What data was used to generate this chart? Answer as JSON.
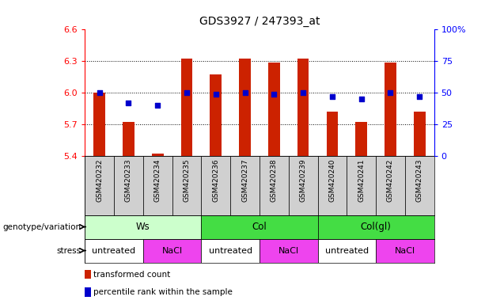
{
  "title": "GDS3927 / 247393_at",
  "samples": [
    "GSM420232",
    "GSM420233",
    "GSM420234",
    "GSM420235",
    "GSM420236",
    "GSM420237",
    "GSM420238",
    "GSM420239",
    "GSM420240",
    "GSM420241",
    "GSM420242",
    "GSM420243"
  ],
  "bar_values": [
    6.0,
    5.72,
    5.42,
    6.32,
    6.17,
    6.32,
    6.28,
    6.32,
    5.82,
    5.72,
    6.28,
    5.82
  ],
  "dot_values": [
    6.0,
    5.9,
    5.88,
    6.0,
    5.98,
    6.0,
    5.98,
    6.0,
    5.96,
    5.94,
    6.0,
    5.96
  ],
  "ymin": 5.4,
  "ymax": 6.6,
  "yticks_left": [
    5.4,
    5.7,
    6.0,
    6.3,
    6.6
  ],
  "right_yticks_pct": [
    0,
    25,
    50,
    75,
    100
  ],
  "bar_color": "#cc2200",
  "dot_color": "#0000cc",
  "bar_bottom": 5.4,
  "sample_bg_color": "#d0d0d0",
  "genotype_groups": [
    {
      "label": "Ws",
      "start": 0,
      "end": 3,
      "color": "#ccffcc"
    },
    {
      "label": "Col",
      "start": 4,
      "end": 7,
      "color": "#44dd44"
    },
    {
      "label": "Col(gl)",
      "start": 8,
      "end": 11,
      "color": "#44dd44"
    }
  ],
  "stress_groups": [
    {
      "label": "untreated",
      "start": 0,
      "end": 1,
      "color": "#ffffff"
    },
    {
      "label": "NaCl",
      "start": 2,
      "end": 3,
      "color": "#ee44ee"
    },
    {
      "label": "untreated",
      "start": 4,
      "end": 5,
      "color": "#ffffff"
    },
    {
      "label": "NaCl",
      "start": 6,
      "end": 7,
      "color": "#ee44ee"
    },
    {
      "label": "untreated",
      "start": 8,
      "end": 9,
      "color": "#ffffff"
    },
    {
      "label": "NaCl",
      "start": 10,
      "end": 11,
      "color": "#ee44ee"
    }
  ],
  "legend_items": [
    {
      "label": "transformed count",
      "color": "#cc2200"
    },
    {
      "label": "percentile rank within the sample",
      "color": "#0000cc"
    }
  ],
  "genotype_label": "genotype/variation",
  "stress_label": "stress",
  "grid_yticks": [
    5.7,
    6.0,
    6.3
  ]
}
